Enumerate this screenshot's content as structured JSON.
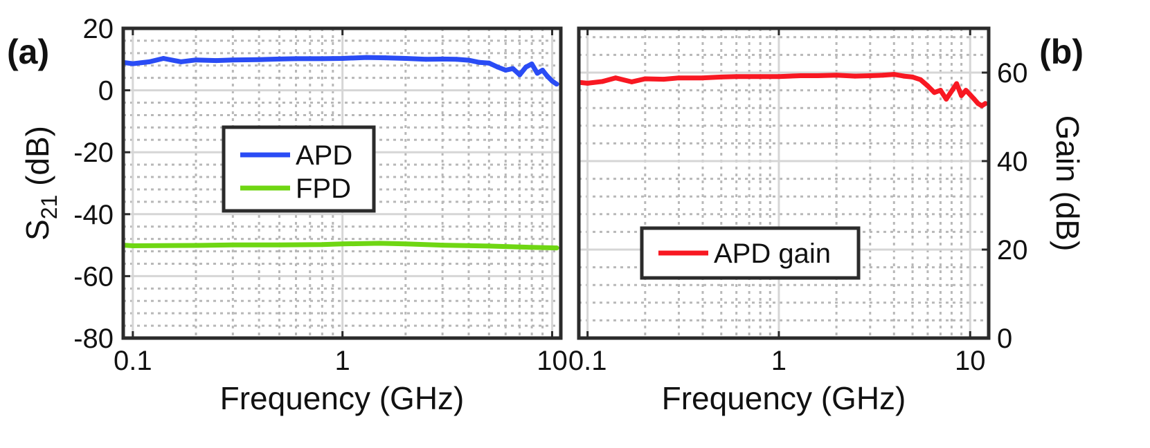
{
  "chart_data": [
    {
      "panel_label": "(a)",
      "type": "line",
      "xscale": "log",
      "xlabel": "Frequency (GHz)",
      "ylabel_main": "S",
      "ylabel_sub": "21",
      "ylabel_unit": " (dB)",
      "xlim": [
        0.09,
        11
      ],
      "ylim": [
        -80,
        20
      ],
      "xticks": [
        0.1,
        1,
        10
      ],
      "xtick_labels": [
        "0.1",
        "1",
        "10"
      ],
      "yticks": [
        -80,
        -60,
        -40,
        -20,
        0,
        20
      ],
      "ytick_labels": [
        "-80",
        "-60",
        "-40",
        "-20",
        "0",
        "20"
      ],
      "grid": true,
      "legend_position": "middle-left",
      "series": [
        {
          "name": "APD",
          "color": "#2a4cf5",
          "x": [
            0.09,
            0.1,
            0.12,
            0.14,
            0.17,
            0.2,
            0.25,
            0.3,
            0.4,
            0.5,
            0.6,
            0.8,
            1.0,
            1.3,
            1.6,
            2.0,
            2.5,
            3.0,
            3.5,
            4.0,
            4.5,
            5.0,
            5.5,
            6.0,
            6.5,
            7.0,
            7.5,
            8.0,
            8.5,
            9.0,
            9.5,
            10.0,
            10.5
          ],
          "y": [
            9,
            8.6,
            9.2,
            10.3,
            9.2,
            9.8,
            9.6,
            9.8,
            9.9,
            10.1,
            10.2,
            10.2,
            10.3,
            10.6,
            10.5,
            10.3,
            10.0,
            10.1,
            10.0,
            9.7,
            9.0,
            8.8,
            7.5,
            6.5,
            7.0,
            5.0,
            7.5,
            8.5,
            5.5,
            6.5,
            4.5,
            3.0,
            2.0
          ]
        },
        {
          "name": "FPD",
          "color": "#6fd613",
          "x": [
            0.09,
            0.1,
            0.2,
            0.3,
            0.5,
            0.8,
            1.0,
            1.5,
            2.0,
            3.0,
            5.0,
            7.0,
            10.5
          ],
          "y": [
            -50,
            -50.2,
            -50.1,
            -49.9,
            -49.9,
            -49.8,
            -49.6,
            -49.4,
            -49.6,
            -50.0,
            -50.3,
            -50.6,
            -50.9
          ]
        }
      ]
    },
    {
      "panel_label": "(b)",
      "type": "line",
      "xscale": "log",
      "xlabel": "Frequency (GHz)",
      "ylabel": "Gain (dB)",
      "xlim": [
        0.09,
        12.5
      ],
      "ylim": [
        0,
        70
      ],
      "yaxis_side": "right",
      "xticks": [
        0.1,
        1,
        10
      ],
      "xtick_labels": [
        "0.1",
        "1",
        "10"
      ],
      "yticks": [
        0,
        20,
        40,
        60
      ],
      "ytick_labels": [
        "0",
        "20",
        "40",
        "60"
      ],
      "grid": true,
      "legend_position": "bottom-center",
      "series": [
        {
          "name": "APD gain",
          "color": "#f81822",
          "x": [
            0.09,
            0.1,
            0.12,
            0.14,
            0.17,
            0.2,
            0.25,
            0.3,
            0.4,
            0.5,
            0.6,
            0.8,
            1.0,
            1.3,
            1.6,
            2.0,
            2.5,
            3.0,
            3.5,
            4.0,
            4.5,
            5.0,
            5.5,
            6.0,
            6.5,
            7.0,
            7.5,
            8.0,
            8.5,
            9.0,
            9.5,
            10.0,
            10.5,
            11.0,
            11.5,
            12.0
          ],
          "y": [
            57.8,
            57.6,
            58.0,
            58.8,
            57.9,
            58.6,
            58.5,
            58.8,
            58.8,
            59.0,
            59.1,
            59.1,
            59.1,
            59.3,
            59.3,
            59.4,
            59.2,
            59.3,
            59.4,
            59.6,
            59.2,
            59.0,
            58.4,
            57.0,
            55.5,
            56.0,
            54.0,
            55.8,
            57.5,
            54.8,
            56.0,
            55.0,
            54.0,
            53.0,
            52.5,
            53.0
          ]
        }
      ]
    }
  ]
}
